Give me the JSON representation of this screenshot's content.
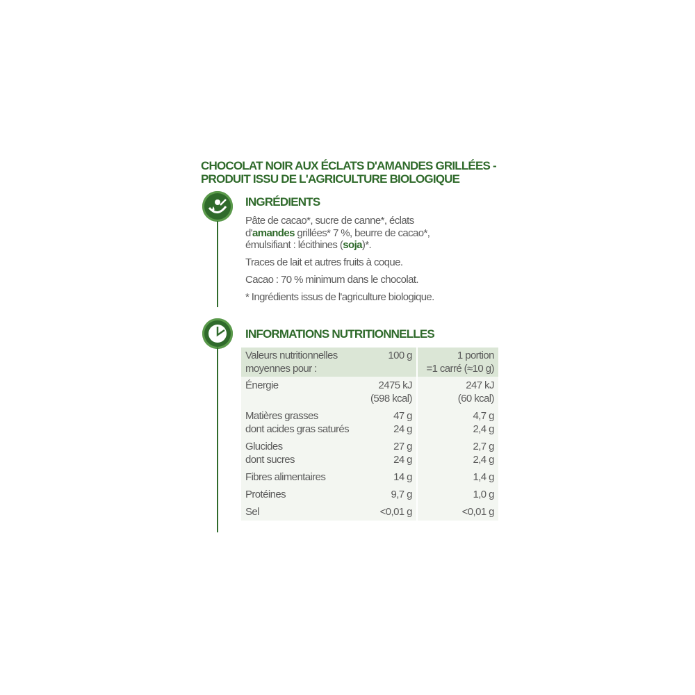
{
  "title": {
    "line1": "CHOCOLAT NOIR AUX ÉCLATS D'AMANDES GRILLÉES -",
    "line2": "PRODUIT ISSU DE L'AGRICULTURE BIOLOGIQUE"
  },
  "ingredients": {
    "icon": "ingredients-leaf-drop-icon",
    "heading": "INGRÉDIENTS",
    "line1": "Pâte de cacao*, sucre de canne*, éclats",
    "line2_pre": "d'",
    "line2_bold": "amandes",
    "line2_post": " grillées* 7 %, beurre de cacao*,",
    "line3_pre": "émulsifiant : lécithines (",
    "line3_bold": "soja",
    "line3_post": ")*.",
    "traces": "Traces de lait et autres fruits à coque.",
    "cacao": "Cacao : 70 % minimum dans le chocolat.",
    "footnote": "* Ingrédients issus de l'agriculture biologique."
  },
  "nutrition": {
    "icon": "clock-icon",
    "heading": "INFORMATIONS NUTRITIONNELLES",
    "header": {
      "label_line1": "Valeurs nutritionnelles",
      "label_line2": "moyennes pour :",
      "col100": "100 g",
      "portion_line1": "1 portion",
      "portion_line2": "=1 carré (≈10 g)"
    },
    "rows": [
      {
        "l1": "Énergie",
        "l2": "",
        "v1": "2475 kJ",
        "v2": "(598 kcal)",
        "p1": "247 kJ",
        "p2": "(60 kcal)"
      },
      {
        "l1": "Matières grasses",
        "l2": "dont acides gras saturés",
        "v1": "47 g",
        "v2": "24 g",
        "p1": "4,7 g",
        "p2": "2,4 g"
      },
      {
        "l1": "Glucides",
        "l2": "dont sucres",
        "v1": "27 g",
        "v2": "24 g",
        "p1": "2,7 g",
        "p2": "2,4 g"
      },
      {
        "l1": "Fibres alimentaires",
        "l2": "",
        "v1": "14 g",
        "v2": "",
        "p1": "1,4 g",
        "p2": ""
      },
      {
        "l1": "Protéines",
        "l2": "",
        "v1": "9,7 g",
        "v2": "",
        "p1": "1,0 g",
        "p2": ""
      },
      {
        "l1": "Sel",
        "l2": "",
        "v1": "<0,01 g",
        "v2": "",
        "p1": "<0,01 g",
        "p2": ""
      }
    ]
  },
  "colors": {
    "brand_green": "#2f6a2b",
    "header_bg": "#dbe6d6",
    "row_bg": "#f3f6f1"
  }
}
